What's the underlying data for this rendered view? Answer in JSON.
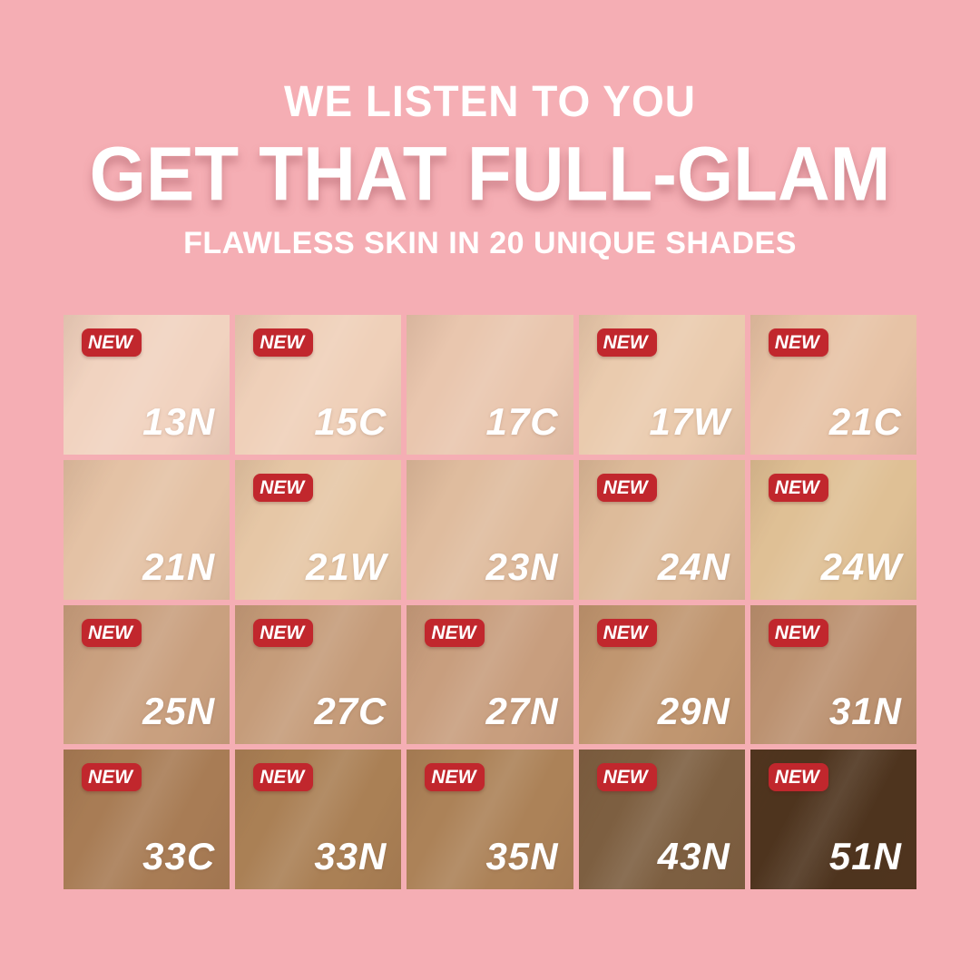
{
  "header": {
    "line1": "WE LISTEN TO YOU",
    "line2": "GET THAT FULL-GLAM",
    "line3": "FLAWLESS SKIN IN 20 UNIQUE SHADES"
  },
  "badge_label": "NEW",
  "colors": {
    "background": "#F5AEB4",
    "badge_red": "#C1272D",
    "heading_text": "#FFFFFF",
    "shade_label_text": "#FFFFFF"
  },
  "shade_count": 20,
  "shades": [
    {
      "code": "13N",
      "new": true,
      "color": "#F1D3C0"
    },
    {
      "code": "15C",
      "new": true,
      "color": "#EFD0B9"
    },
    {
      "code": "17C",
      "new": false,
      "color": "#E9C6AE"
    },
    {
      "code": "17W",
      "new": true,
      "color": "#EACBAE"
    },
    {
      "code": "21C",
      "new": true,
      "color": "#E7C3A6"
    },
    {
      "code": "21N",
      "new": false,
      "color": "#E4C2A5"
    },
    {
      "code": "21W",
      "new": true,
      "color": "#E6C7A6"
    },
    {
      "code": "23N",
      "new": false,
      "color": "#DFBC9E"
    },
    {
      "code": "24N",
      "new": true,
      "color": "#DDBB9A"
    },
    {
      "code": "24W",
      "new": true,
      "color": "#DFC095"
    },
    {
      "code": "25N",
      "new": true,
      "color": "#C9A07F"
    },
    {
      "code": "27C",
      "new": true,
      "color": "#C59C7A"
    },
    {
      "code": "27N",
      "new": true,
      "color": "#C89E7E"
    },
    {
      "code": "29N",
      "new": true,
      "color": "#C09670"
    },
    {
      "code": "31N",
      "new": true,
      "color": "#BB9170"
    },
    {
      "code": "33C",
      "new": true,
      "color": "#A87C55"
    },
    {
      "code": "33N",
      "new": true,
      "color": "#AA8055"
    },
    {
      "code": "35N",
      "new": true,
      "color": "#AC8258"
    },
    {
      "code": "43N",
      "new": true,
      "color": "#7D5F41"
    },
    {
      "code": "51N",
      "new": true,
      "color": "#4E341E"
    }
  ]
}
